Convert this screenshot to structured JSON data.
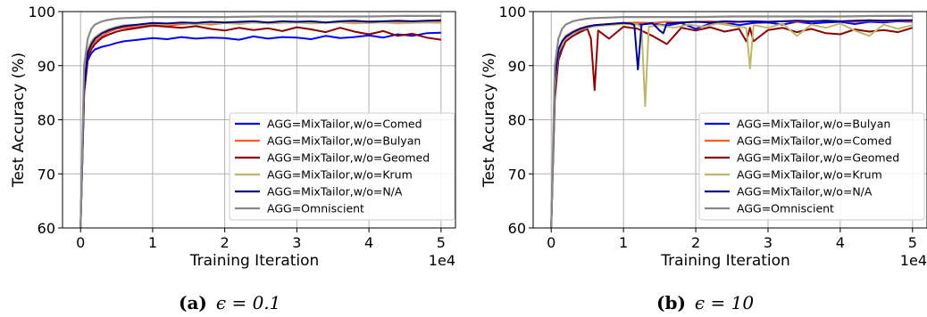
{
  "chart_data": [
    {
      "type": "line",
      "caption_label": "(a)",
      "caption_text": "ϵ = 0.1",
      "xlabel": "Training Iteration",
      "ylabel": "Test Accuracy (%)",
      "x_multiplier": "1e4",
      "xlim": [
        -0.25,
        5.2
      ],
      "ylim": [
        60,
        100
      ],
      "xticks": [
        0,
        1,
        2,
        3,
        4,
        5
      ],
      "yticks": [
        60,
        70,
        80,
        90,
        100
      ],
      "grid": true,
      "legend_position": "lower-right",
      "series": [
        {
          "name": "AGG=MixTailor,w/o=Comed",
          "color": "#0000ff",
          "x": [
            0,
            0.05,
            0.1,
            0.15,
            0.2,
            0.3,
            0.4,
            0.5,
            0.6,
            0.8,
            1.0,
            1.2,
            1.4,
            1.6,
            1.8,
            2.0,
            2.2,
            2.4,
            2.6,
            2.8,
            3.0,
            3.2,
            3.4,
            3.6,
            3.8,
            4.0,
            4.2,
            4.4,
            4.6,
            4.8,
            5.0
          ],
          "y": [
            60,
            85,
            91,
            92.3,
            93,
            93.5,
            93.8,
            94.2,
            94.5,
            94.8,
            95.1,
            94.9,
            95.3,
            95.0,
            95.2,
            95.1,
            94.8,
            95.4,
            95.0,
            95.3,
            95.2,
            94.9,
            95.5,
            95.1,
            95.3,
            95.6,
            95.2,
            95.8,
            95.5,
            96.0,
            96.1
          ]
        },
        {
          "name": "AGG=MixTailor,w/o=Bulyan",
          "color": "#ff5a1f",
          "x": [
            0,
            0.05,
            0.1,
            0.15,
            0.2,
            0.3,
            0.4,
            0.5,
            0.6,
            0.8,
            1.0,
            1.2,
            1.4,
            1.6,
            1.8,
            2.0,
            2.2,
            2.4,
            2.6,
            2.8,
            3.0,
            3.2,
            3.4,
            3.6,
            3.8,
            4.0,
            4.2,
            4.4,
            4.6,
            4.8,
            5.0
          ],
          "y": [
            60,
            86,
            92,
            93.5,
            94.5,
            95.5,
            96.3,
            96.8,
            97.0,
            97.2,
            97.5,
            97.3,
            97.7,
            97.8,
            97.6,
            97.9,
            97.8,
            98.0,
            97.9,
            98.0,
            98.1,
            97.9,
            98.0,
            98.1,
            98.0,
            98.2,
            98.1,
            98.0,
            98.2,
            98.1,
            98.2
          ]
        },
        {
          "name": "AGG=MixTailor,w/o=Geomed",
          "color": "#8b0000",
          "x": [
            0,
            0.05,
            0.1,
            0.15,
            0.2,
            0.3,
            0.4,
            0.5,
            0.6,
            0.8,
            1.0,
            1.2,
            1.4,
            1.6,
            1.8,
            2.0,
            2.2,
            2.4,
            2.6,
            2.8,
            3.0,
            3.2,
            3.4,
            3.6,
            3.8,
            4.0,
            4.2,
            4.4,
            4.6,
            4.8,
            5.0
          ],
          "y": [
            60,
            85,
            91.5,
            93,
            94,
            95.2,
            95.8,
            96.3,
            96.6,
            97.0,
            97.4,
            97.2,
            97.0,
            97.3,
            96.8,
            96.5,
            97.0,
            96.6,
            96.9,
            96.4,
            97.1,
            96.7,
            96.2,
            97.0,
            96.3,
            95.8,
            96.4,
            95.5,
            95.9,
            95.2,
            94.8
          ]
        },
        {
          "name": "AGG=MixTailor,w/o=Krum",
          "color": "#bdb76b",
          "x": [
            0,
            0.05,
            0.1,
            0.15,
            0.2,
            0.3,
            0.4,
            0.5,
            0.6,
            0.8,
            1.0,
            1.2,
            1.4,
            1.6,
            1.8,
            2.0,
            2.2,
            2.4,
            2.6,
            2.8,
            3.0,
            3.2,
            3.4,
            3.6,
            3.8,
            4.0,
            4.2,
            4.4,
            4.6,
            4.8,
            5.0
          ],
          "y": [
            60,
            87,
            93,
            94.5,
            95.3,
            96.2,
            96.8,
            97.2,
            97.5,
            97.6,
            97.8,
            97.7,
            97.9,
            97.6,
            97.8,
            97.9,
            97.7,
            98.0,
            97.8,
            97.9,
            98.0,
            97.8,
            97.9,
            98.0,
            97.8,
            97.9,
            98.0,
            97.8,
            97.9,
            98.0,
            97.9
          ]
        },
        {
          "name": "AGG=MixTailor,w/o=N/A",
          "color": "#00008b",
          "x": [
            0,
            0.05,
            0.1,
            0.15,
            0.2,
            0.3,
            0.4,
            0.5,
            0.6,
            0.8,
            1.0,
            1.2,
            1.4,
            1.6,
            1.8,
            2.0,
            2.2,
            2.4,
            2.6,
            2.8,
            3.0,
            3.2,
            3.4,
            3.6,
            3.8,
            4.0,
            4.2,
            4.4,
            4.6,
            4.8,
            5.0
          ],
          "y": [
            60,
            86,
            92.5,
            94,
            95,
            96,
            96.6,
            97.0,
            97.3,
            97.6,
            97.9,
            97.8,
            98.0,
            97.9,
            98.1,
            98.0,
            98.1,
            98.2,
            98.0,
            98.2,
            98.1,
            98.2,
            98.0,
            98.2,
            98.3,
            98.1,
            98.2,
            98.3,
            98.2,
            98.3,
            98.4
          ]
        },
        {
          "name": "AGG=Omniscient",
          "color": "#888888",
          "x": [
            0,
            0.05,
            0.1,
            0.15,
            0.2,
            0.3,
            0.4,
            0.5,
            0.6,
            0.8,
            1.0,
            1.5,
            2.0,
            2.5,
            3.0,
            3.5,
            4.0,
            4.5,
            5.0
          ],
          "y": [
            60,
            90,
            95,
            96.8,
            97.6,
            98.2,
            98.5,
            98.7,
            98.8,
            98.9,
            99.0,
            99.0,
            99.0,
            99.1,
            99.1,
            99.1,
            99.1,
            99.2,
            99.2
          ]
        }
      ]
    },
    {
      "type": "line",
      "caption_label": "(b)",
      "caption_text": "ϵ = 10",
      "xlabel": "Training Iteration",
      "ylabel": "Test Accuracy (%)",
      "x_multiplier": "1e4",
      "xlim": [
        -0.25,
        5.2
      ],
      "ylim": [
        60,
        100
      ],
      "xticks": [
        0,
        1,
        2,
        3,
        4,
        5
      ],
      "yticks": [
        60,
        70,
        80,
        90,
        100
      ],
      "grid": true,
      "legend_position": "lower-right",
      "series": [
        {
          "name": "AGG=MixTailor,w/o=Bulyan",
          "color": "#0000ff",
          "x": [
            0,
            0.05,
            0.1,
            0.15,
            0.2,
            0.3,
            0.4,
            0.5,
            0.6,
            0.8,
            1.0,
            1.2,
            1.4,
            1.6,
            1.8,
            2.0,
            2.2,
            2.4,
            2.6,
            2.8,
            3.0,
            3.2,
            3.4,
            3.6,
            3.8,
            4.0,
            4.2,
            4.4,
            4.6,
            4.8,
            5.0
          ],
          "y": [
            60,
            86,
            92,
            94,
            95,
            96,
            96.5,
            97.0,
            97.3,
            97.6,
            97.9,
            97.6,
            97.8,
            97.4,
            97.9,
            96.8,
            97.8,
            98.0,
            97.5,
            97.9,
            98.0,
            97.6,
            98.1,
            97.8,
            98.0,
            98.1,
            97.7,
            98.1,
            98.0,
            98.2,
            98.1
          ]
        },
        {
          "name": "AGG=MixTailor,w/o=Comed",
          "color": "#ff5a1f",
          "x": [
            0,
            0.05,
            0.1,
            0.15,
            0.2,
            0.3,
            0.4,
            0.5,
            0.6,
            0.8,
            1.0,
            1.2,
            1.4,
            1.6,
            1.8,
            2.0,
            2.2,
            2.4,
            2.6,
            2.8,
            3.0,
            3.2,
            3.4,
            3.6,
            3.8,
            4.0,
            4.2,
            4.4,
            4.6,
            4.8,
            5.0
          ],
          "y": [
            60,
            87,
            93,
            94.5,
            95.5,
            96.3,
            96.9,
            97.3,
            97.5,
            97.7,
            97.9,
            98.0,
            97.9,
            98.1,
            98.0,
            98.1,
            98.2,
            98.0,
            98.1,
            98.2,
            98.1,
            98.2,
            98.1,
            98.2,
            98.3,
            98.2,
            98.1,
            98.3,
            98.2,
            98.3,
            98.2
          ]
        },
        {
          "name": "AGG=MixTailor,w/o=Geomed",
          "color": "#8b0000",
          "x": [
            0,
            0.05,
            0.1,
            0.15,
            0.2,
            0.3,
            0.4,
            0.5,
            0.55,
            0.6,
            0.65,
            0.8,
            1.0,
            1.2,
            1.4,
            1.6,
            1.8,
            2.0,
            2.2,
            2.4,
            2.6,
            2.7,
            2.75,
            2.8,
            3.0,
            3.2,
            3.4,
            3.6,
            3.8,
            4.0,
            4.2,
            4.4,
            4.6,
            4.8,
            5.0
          ],
          "y": [
            60,
            84,
            91,
            93,
            94.5,
            95.5,
            96.2,
            96.8,
            95,
            85.5,
            96.5,
            95.0,
            97.2,
            96.8,
            95.5,
            94.0,
            97.0,
            96.5,
            97.1,
            96.3,
            96.8,
            94.5,
            97.0,
            94.5,
            96.6,
            97.0,
            96.2,
            96.8,
            96.0,
            95.8,
            96.7,
            96.3,
            96.6,
            96.2,
            97.0
          ]
        },
        {
          "name": "AGG=MixTailor,w/o=Krum",
          "color": "#bdb76b",
          "x": [
            0,
            0.05,
            0.1,
            0.15,
            0.2,
            0.3,
            0.4,
            0.5,
            0.6,
            0.8,
            1.0,
            1.2,
            1.25,
            1.3,
            1.35,
            1.5,
            1.7,
            1.9,
            2.1,
            2.3,
            2.5,
            2.7,
            2.75,
            2.8,
            3.0,
            3.2,
            3.4,
            3.6,
            3.8,
            4.0,
            4.2,
            4.4,
            4.6,
            4.8,
            5.0
          ],
          "y": [
            60,
            86,
            92.5,
            94,
            95,
            96,
            96.6,
            97.0,
            97.3,
            97.5,
            97.7,
            97.6,
            97.0,
            82.5,
            97.2,
            97.5,
            97.0,
            97.6,
            97.2,
            97.8,
            97.4,
            97.0,
            89.5,
            97.5,
            97.0,
            97.8,
            95.5,
            97.6,
            97.0,
            97.8,
            96.5,
            95.5,
            97.6,
            96.8,
            97.5
          ]
        },
        {
          "name": "AGG=MixTailor,w/o=N/A",
          "color": "#00008b",
          "x": [
            0,
            0.05,
            0.1,
            0.15,
            0.2,
            0.3,
            0.4,
            0.5,
            0.6,
            0.8,
            1.0,
            1.1,
            1.15,
            1.2,
            1.25,
            1.4,
            1.5,
            1.55,
            1.6,
            1.8,
            2.0,
            2.2,
            2.4,
            2.6,
            2.8,
            3.0,
            3.2,
            3.4,
            3.6,
            3.8,
            4.0,
            4.2,
            4.4,
            4.6,
            4.8,
            5.0
          ],
          "y": [
            60,
            87,
            93,
            94.5,
            95.3,
            96.2,
            96.8,
            97.2,
            97.5,
            97.7,
            97.9,
            97.8,
            97.5,
            89.3,
            97.6,
            97.9,
            96.5,
            96.0,
            97.8,
            98.0,
            98.1,
            98.0,
            98.2,
            98.1,
            98.2,
            98.1,
            98.2,
            98.3,
            98.2,
            98.3,
            98.2,
            98.3,
            98.4,
            98.3,
            98.4,
            98.4
          ]
        },
        {
          "name": "AGG=Omniscient",
          "color": "#888888",
          "x": [
            0,
            0.05,
            0.1,
            0.15,
            0.2,
            0.3,
            0.4,
            0.5,
            0.6,
            0.8,
            1.0,
            1.5,
            2.0,
            2.5,
            3.0,
            3.5,
            4.0,
            4.5,
            5.0
          ],
          "y": [
            60,
            90,
            95,
            96.8,
            97.6,
            98.2,
            98.5,
            98.7,
            98.8,
            98.9,
            99.0,
            99.0,
            99.0,
            99.1,
            99.1,
            99.1,
            99.1,
            99.2,
            99.2
          ]
        }
      ]
    }
  ]
}
